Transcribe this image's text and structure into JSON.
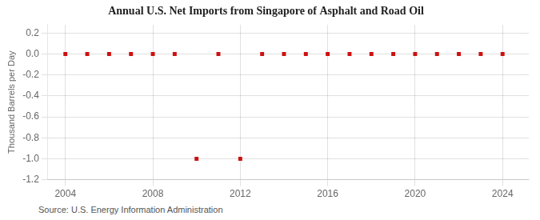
{
  "chart_data": {
    "type": "scatter",
    "title": "Annual U.S. Net Imports from Singapore of Asphalt and Road Oil",
    "ylabel": "Thousand Barrels per Day",
    "annotations": [
      "Source: U.S. Energy Information Administration"
    ],
    "x": [
      2004,
      2005,
      2006,
      2007,
      2008,
      2009,
      2010,
      2011,
      2012,
      2013,
      2014,
      2015,
      2016,
      2017,
      2018,
      2019,
      2020,
      2021,
      2022,
      2023,
      2024
    ],
    "values": [
      0,
      0,
      0,
      0,
      0,
      0,
      -1,
      0,
      -1,
      0,
      0,
      0,
      0,
      0,
      0,
      0,
      0,
      0,
      0,
      0,
      0
    ],
    "color": "#cc1111",
    "marker": "square",
    "xlim": [
      2003.2,
      2025.2
    ],
    "ylim": [
      -1.2,
      0.28
    ],
    "xticks": [
      2004,
      2008,
      2012,
      2016,
      2020,
      2024
    ],
    "yticks": [
      0.2,
      {
        "value": 0,
        "label": "0.0"
      },
      -0.2,
      -0.4,
      -0.6,
      -0.8,
      {
        "value": -1,
        "label": "-1.0"
      },
      -1.2
    ],
    "grid": true
  }
}
